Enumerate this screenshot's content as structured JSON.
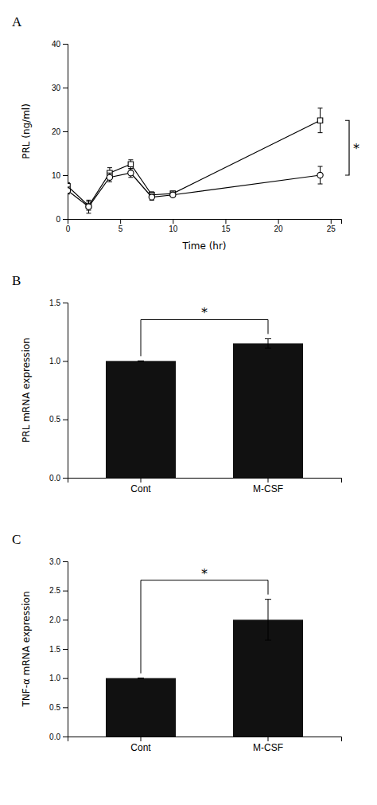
{
  "chart_data": [
    {
      "type": "line",
      "title": "A",
      "xlabel": "Time (hr)",
      "ylabel": "PRL (ng/ml)",
      "x": [
        0,
        2,
        4,
        6,
        8,
        10,
        24
      ],
      "series": [
        {
          "color": "#000000",
          "marker": "square",
          "values": [
            7.5,
            3.0,
            10.5,
            12.5,
            5.5,
            5.8,
            22.5
          ],
          "errors": [
            0.8,
            1.0,
            1.2,
            1.0,
            0.7,
            0.5,
            2.8
          ]
        },
        {
          "color": "#000000",
          "marker": "circle",
          "values": [
            6.5,
            2.8,
            9.5,
            10.5,
            5.0,
            5.5,
            10.0
          ],
          "errors": [
            0.8,
            1.5,
            1.0,
            1.0,
            0.7,
            0.5,
            2.0
          ]
        }
      ],
      "xlim": [
        0,
        26
      ],
      "ylim": [
        0,
        40
      ],
      "xticks": [
        0,
        5,
        10,
        15,
        20,
        25
      ],
      "yticks": [
        0,
        10,
        20,
        30,
        40
      ],
      "annotations": [
        {
          "text": "*"
        }
      ]
    },
    {
      "type": "bar",
      "title": "B",
      "ylabel": "PRL mRNA expression",
      "categories": [
        "Cont",
        "M-CSF"
      ],
      "values": [
        1.0,
        1.15
      ],
      "errors": [
        0.0,
        0.04
      ],
      "color": "#111111",
      "ylim": [
        0.0,
        1.5
      ],
      "yticks": [
        {
          "value": 0,
          "label": "0.0"
        },
        0.5,
        {
          "value": 1,
          "label": "1.0"
        },
        1.5
      ],
      "annotations": [
        {
          "text": "*"
        }
      ]
    },
    {
      "type": "bar",
      "title": "C",
      "ylabel": "TNF-α mRNA expression",
      "categories": [
        "Cont",
        "M-CSF"
      ],
      "values": [
        1.0,
        2.0
      ],
      "errors": [
        0.0,
        0.35
      ],
      "color": "#111111",
      "ylim": [
        0.0,
        3.0
      ],
      "yticks": [
        {
          "value": 0,
          "label": "0.0"
        },
        0.5,
        {
          "value": 1,
          "label": "1.0"
        },
        1.5,
        {
          "value": 2,
          "label": "2.0"
        },
        2.5,
        {
          "value": 3,
          "label": "3.0"
        }
      ],
      "annotations": [
        {
          "text": "*"
        }
      ]
    }
  ]
}
